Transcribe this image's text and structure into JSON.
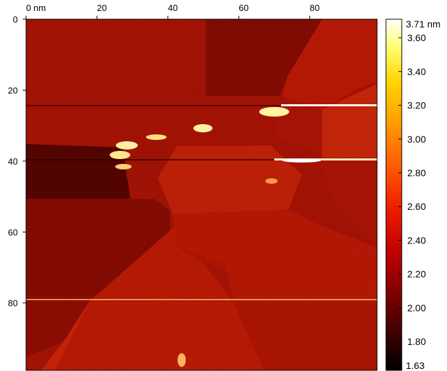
{
  "image": {
    "kind": "AFM topography height map",
    "x_axis": {
      "ticks": [
        {
          "value": 0,
          "label": "0 nm"
        },
        {
          "value": 20,
          "label": "20"
        },
        {
          "value": 40,
          "label": "40"
        },
        {
          "value": 60,
          "label": "60"
        },
        {
          "value": 80,
          "label": "80"
        }
      ],
      "range": [
        0,
        99
      ]
    },
    "y_axis": {
      "ticks": [
        {
          "value": 0,
          "label": "0"
        },
        {
          "value": 20,
          "label": "20"
        },
        {
          "value": 40,
          "label": "40"
        },
        {
          "value": 60,
          "label": "60"
        },
        {
          "value": 80,
          "label": "80"
        }
      ],
      "range": [
        0,
        99
      ]
    },
    "colorbar": {
      "max_label": "3.71 nm",
      "min_label": "1.63",
      "range": [
        1.63,
        3.71
      ],
      "ticks": [
        {
          "value": 3.6,
          "label": "3.60"
        },
        {
          "value": 3.4,
          "label": "3.40"
        },
        {
          "value": 3.2,
          "label": "3.20"
        },
        {
          "value": 3.0,
          "label": "3.00"
        },
        {
          "value": 2.8,
          "label": "2.80"
        },
        {
          "value": 2.6,
          "label": "2.60"
        },
        {
          "value": 2.4,
          "label": "2.40"
        },
        {
          "value": 2.2,
          "label": "2.20"
        },
        {
          "value": 2.0,
          "label": "2.00"
        },
        {
          "value": 1.8,
          "label": "1.80"
        }
      ],
      "colormap": [
        "#000000",
        "#3a0000",
        "#800000",
        "#c00000",
        "#ee1c00",
        "#ff5a00",
        "#ff9a00",
        "#ffd400",
        "#ffff70",
        "#ffffff"
      ]
    }
  }
}
